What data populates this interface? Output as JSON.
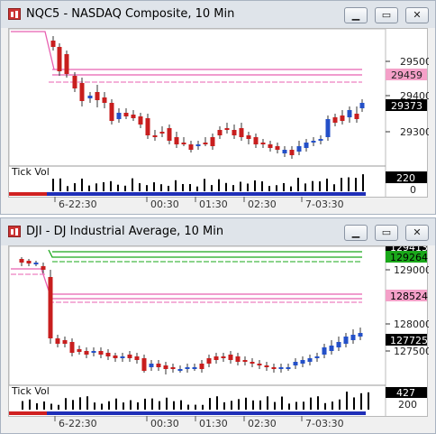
{
  "windows": [
    {
      "title": "NQC5 - NASDAQ Composite, 10 Min",
      "price_axis": [
        "29500",
        "29400",
        "29300"
      ],
      "marker_top": "29459",
      "marker_last": "29373",
      "tick_vol_label": "Tick Vol",
      "vol_marker": "220",
      "vol_axis": "0",
      "time_labels": [
        "6-22:30",
        "00:30",
        "01:30",
        "02:30",
        "7-03:30"
      ]
    },
    {
      "title": "DJI - DJ Industrial Average, 10 Min",
      "price_axis": [
        "129000",
        "128000",
        "127500"
      ],
      "marker_top_green1": "129413",
      "marker_top_green2": "129264",
      "marker_pink": "128524",
      "marker_last": "127725",
      "tick_vol_label": "Tick Vol",
      "vol_marker": "427",
      "vol_axis": "200",
      "time_labels": [
        "6-22:30",
        "00:30",
        "01:30",
        "02:30",
        "7-03:30"
      ]
    }
  ],
  "colors": {
    "up_candle": "#2450c8",
    "down_candle": "#c81e1e",
    "pink_line": "#e860b0",
    "green_line": "#1aa81a",
    "marker_bg": "#000000",
    "pink_marker_bg": "#f4a0c8"
  },
  "icons": {
    "app": "chart-app-icon",
    "minimize": "minimize-icon",
    "maximize": "maximize-icon",
    "close": "close-icon"
  }
}
